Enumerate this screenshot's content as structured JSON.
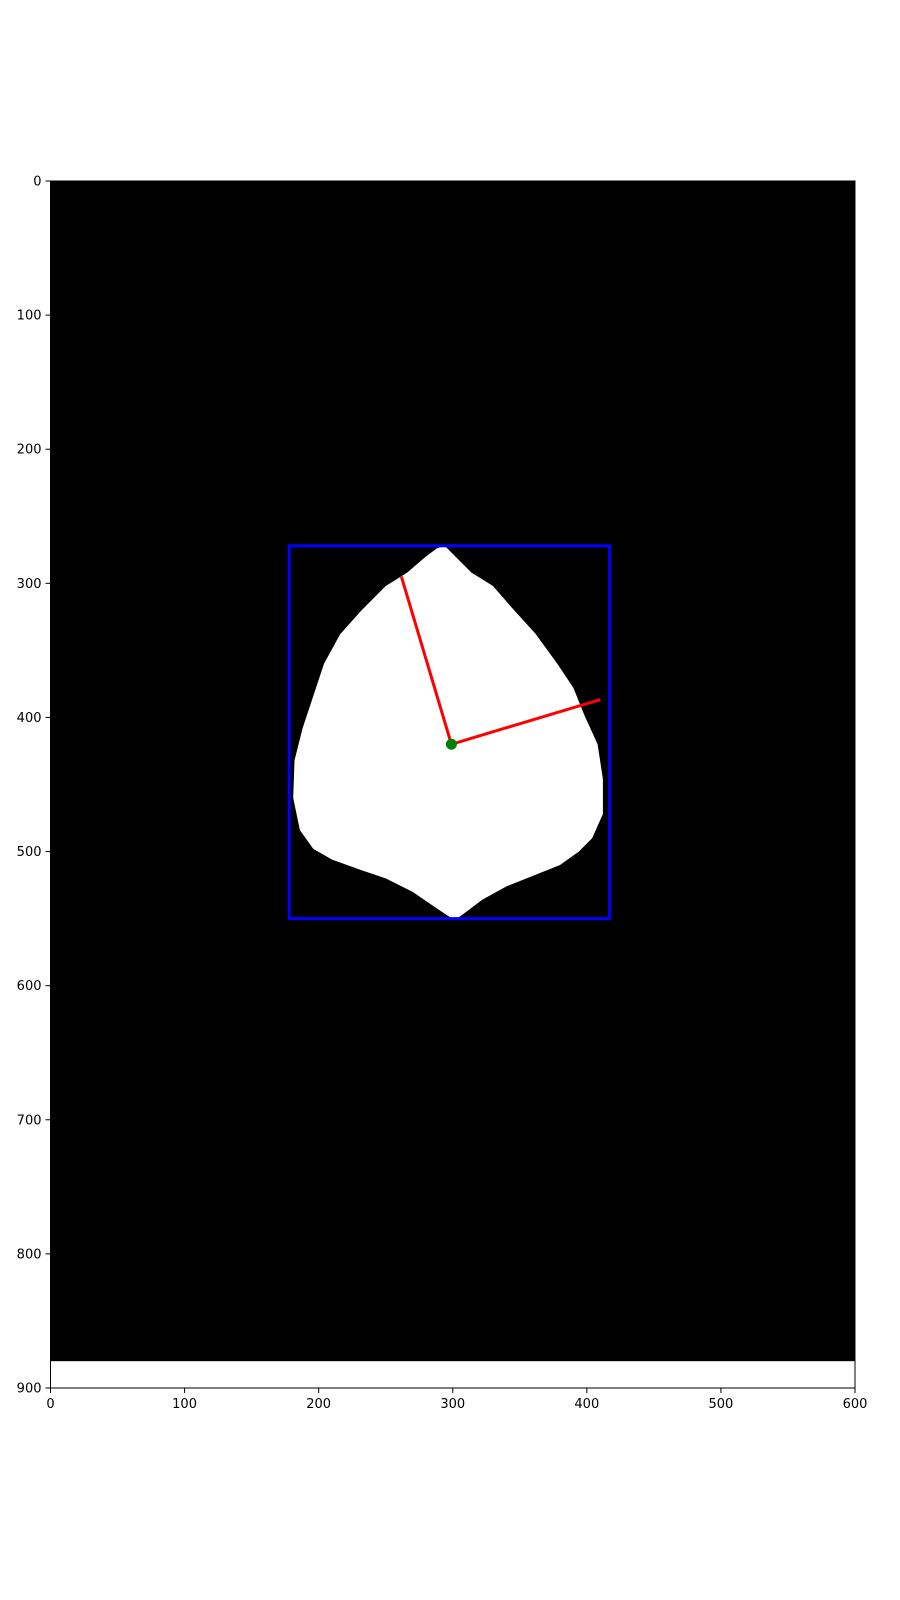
{
  "chart_data": {
    "type": "image_plot",
    "title": "",
    "xlabel": "",
    "ylabel": "",
    "xlim": [
      0,
      600
    ],
    "ylim": [
      900,
      0
    ],
    "x_ticks": [
      0,
      100,
      200,
      300,
      400,
      500,
      600
    ],
    "y_ticks": [
      0,
      100,
      200,
      300,
      400,
      500,
      600,
      700,
      800,
      900
    ],
    "image": {
      "content": "binary leaf mask (white leaf on black background)",
      "rows": 880,
      "background_color": "#000000",
      "foreground_color": "#ffffff"
    },
    "leaf_outline": [
      [
        294,
        272
      ],
      [
        304,
        282
      ],
      [
        314,
        292
      ],
      [
        330,
        302
      ],
      [
        344,
        318
      ],
      [
        362,
        338
      ],
      [
        378,
        360
      ],
      [
        390,
        378
      ],
      [
        398,
        398
      ],
      [
        408,
        420
      ],
      [
        412,
        446
      ],
      [
        412,
        472
      ],
      [
        404,
        490
      ],
      [
        394,
        500
      ],
      [
        380,
        510
      ],
      [
        360,
        518
      ],
      [
        340,
        526
      ],
      [
        322,
        536
      ],
      [
        310,
        545
      ],
      [
        303,
        550
      ],
      [
        298,
        549
      ],
      [
        286,
        541
      ],
      [
        270,
        530
      ],
      [
        250,
        520
      ],
      [
        232,
        514
      ],
      [
        210,
        506
      ],
      [
        196,
        498
      ],
      [
        186,
        484
      ],
      [
        181,
        460
      ],
      [
        182,
        432
      ],
      [
        188,
        408
      ],
      [
        196,
        384
      ],
      [
        204,
        360
      ],
      [
        216,
        338
      ],
      [
        232,
        320
      ],
      [
        250,
        302
      ],
      [
        266,
        292
      ],
      [
        280,
        280
      ],
      [
        288,
        274
      ]
    ],
    "bounding_box": {
      "x_min": 178,
      "x_max": 417,
      "y_min": 272,
      "y_max": 550,
      "color": "#0000ff"
    },
    "centroid": {
      "x": 299,
      "y": 420,
      "color": "#008000"
    },
    "axes_lines": [
      {
        "name": "major-axis",
        "from": [
          299,
          420
        ],
        "to": [
          262,
          296
        ],
        "color": "#ff0000"
      },
      {
        "name": "minor-axis",
        "from": [
          299,
          420
        ],
        "to": [
          409,
          387
        ],
        "color": "#ff0000"
      }
    ]
  }
}
